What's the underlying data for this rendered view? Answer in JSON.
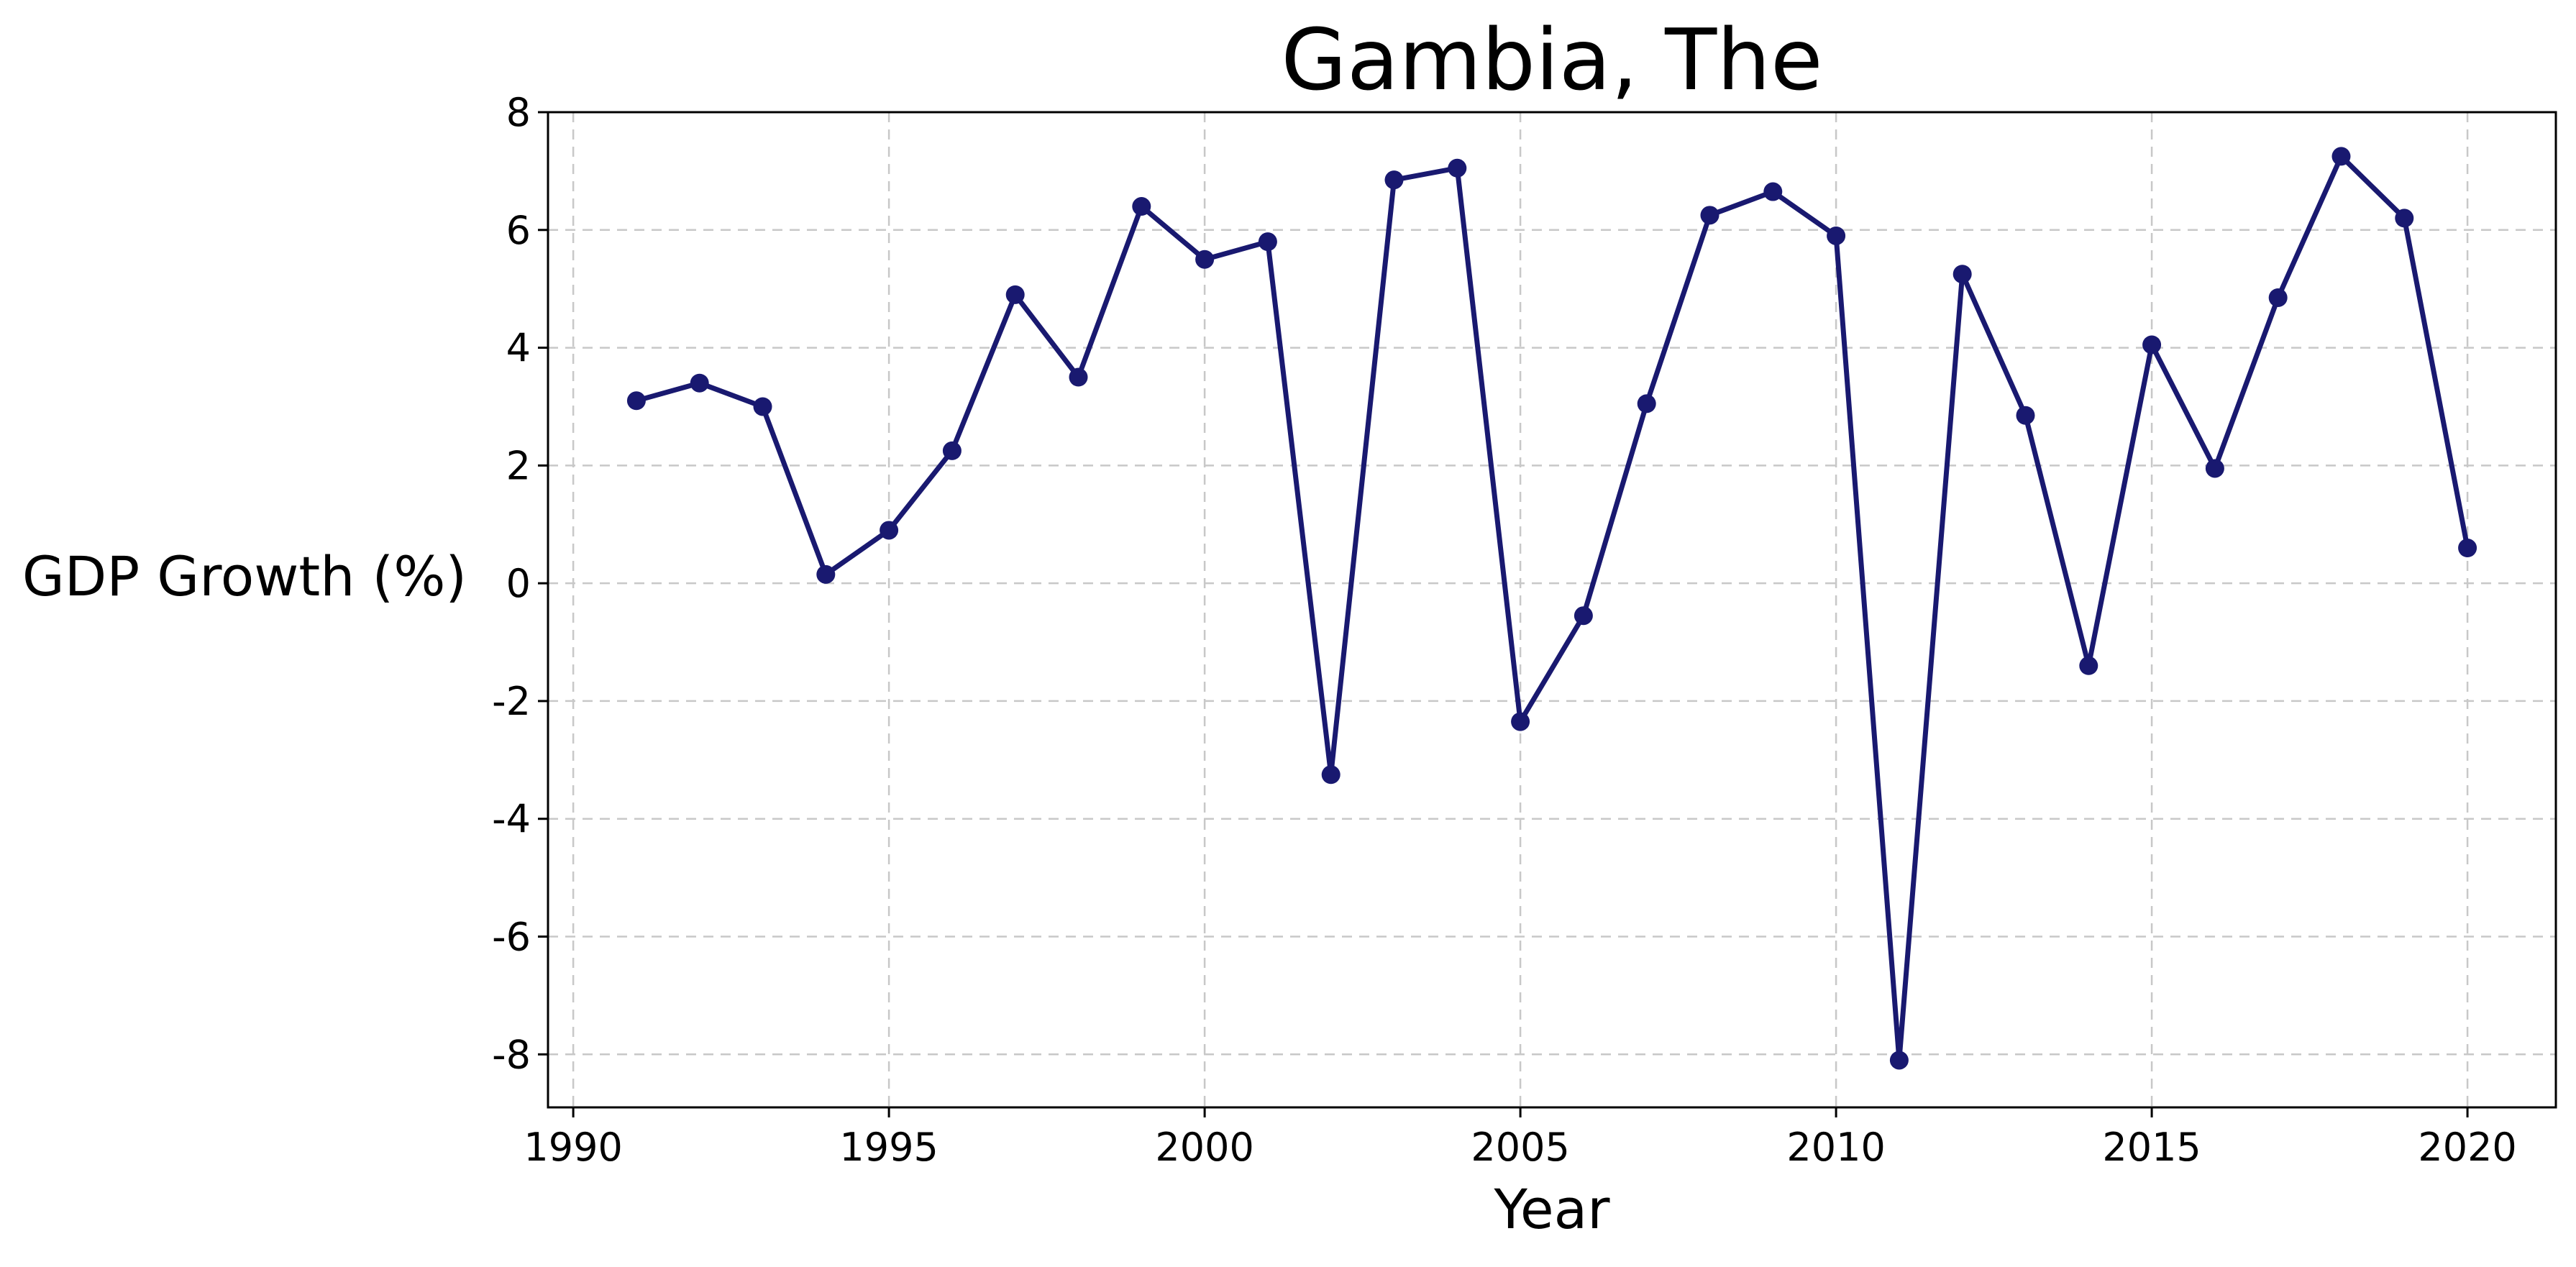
{
  "chart_data": {
    "type": "line",
    "title": "Gambia, The",
    "xlabel": "Year",
    "ylabel": "GDP Growth (%)",
    "xlim": [
      1989.6,
      2021.4
    ],
    "ylim": [
      -8.9,
      8
    ],
    "xticks": [
      1990,
      1995,
      2000,
      2005,
      2010,
      2015,
      2020
    ],
    "yticks": [
      -8,
      -6,
      -4,
      -2,
      0,
      2,
      4,
      6,
      8
    ],
    "grid": true,
    "legend": "none",
    "colors": {
      "series": "#191970"
    },
    "x": [
      1991,
      1992,
      1993,
      1994,
      1995,
      1996,
      1997,
      1998,
      1999,
      2000,
      2001,
      2002,
      2003,
      2004,
      2005,
      2006,
      2007,
      2008,
      2009,
      2010,
      2011,
      2012,
      2013,
      2014,
      2015,
      2016,
      2017,
      2018,
      2019,
      2020
    ],
    "series": [
      {
        "values": [
          3.1,
          3.4,
          3.0,
          0.15,
          0.9,
          2.25,
          4.9,
          3.5,
          6.4,
          5.5,
          5.8,
          -3.25,
          6.85,
          7.05,
          -2.35,
          -0.55,
          3.05,
          6.25,
          6.65,
          5.9,
          -8.1,
          5.25,
          2.85,
          -1.4,
          4.05,
          1.95,
          4.85,
          7.25,
          6.2,
          0.6
        ]
      }
    ]
  }
}
